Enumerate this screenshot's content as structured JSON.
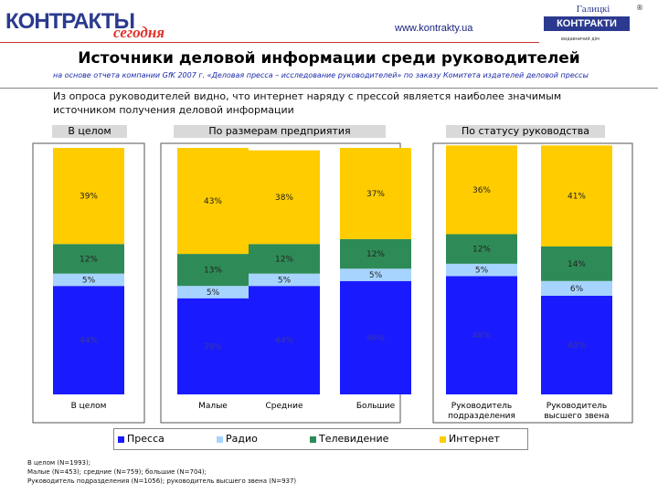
{
  "header": {
    "logo_left_main": "КОНТРАКТЫ",
    "logo_left_sub": "сегодня",
    "website": "www.kontrakty.ua",
    "logo_right_top": "Галицкі",
    "logo_right_box": "КОНТРАКТИ",
    "logo_right_tag": "видавничий дім",
    "registered_mark": "®"
  },
  "title": "Источники деловой информации среди руководителей",
  "subtitle": "на основе отчета компании GfK 2007 г. «Деловая пресса – исследование руководителей» по заказу Комитета издателей деловой прессы",
  "note": "Из опроса руководителей видно, что интернет наряду с прессой является наиболее значимым источником получения деловой информации",
  "sections": {
    "all": "В целом",
    "size": "По размерам предприятия",
    "status": "По статусу руководства"
  },
  "chart_data": {
    "type": "bar",
    "stacked": true,
    "categories": [
      "В целом",
      "Малые",
      "Средние",
      "Большие",
      "Руководитель подразделения",
      "Руководитель высшего звена"
    ],
    "series": [
      {
        "name": "Пресса",
        "color": "#1a1aff",
        "values": [
          44,
          39,
          44,
          46,
          48,
          40
        ],
        "labels": [
          "44%",
          "39%",
          "44%",
          "46%",
          "48%",
          "40%"
        ]
      },
      {
        "name": "Радио",
        "color": "#a6d4ff",
        "values": [
          5,
          5,
          5,
          5,
          5,
          6
        ],
        "labels": [
          "5%",
          "5%",
          "5%",
          "5%",
          "5%",
          "6%"
        ]
      },
      {
        "name": "Телевидение",
        "color": "#2e8b57",
        "values": [
          12,
          13,
          12,
          12,
          12,
          14
        ],
        "labels": [
          "12%",
          "13%",
          "12%",
          "12%",
          "12%",
          "14%"
        ]
      },
      {
        "name": "Интернет",
        "color": "#ffcc00",
        "values": [
          39,
          43,
          38,
          37,
          36,
          41
        ],
        "labels": [
          "39%",
          "43%",
          "38%",
          "37%",
          "36%",
          "41%"
        ]
      }
    ],
    "ylim": [
      0,
      100
    ],
    "legend": "bottom"
  },
  "footnote": [
    "В целом (N=1993);",
    "Малые (N=453); средние (N=759); большие (N=704);",
    "Руководитель подразделения (N=1056); руководитель высшего звена (N=937)"
  ]
}
